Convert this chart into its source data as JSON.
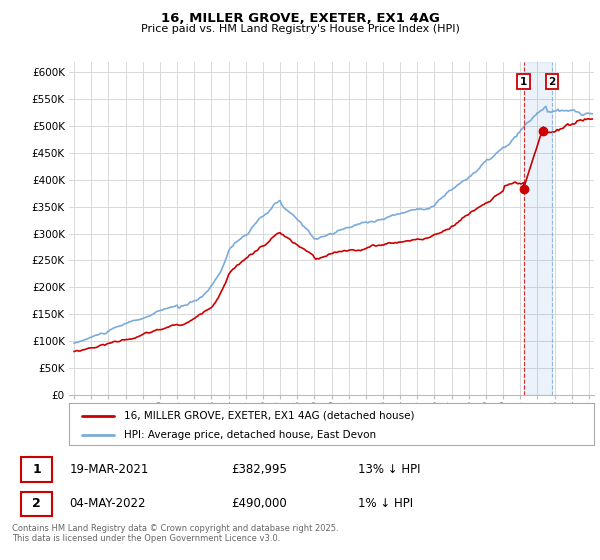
{
  "title": "16, MILLER GROVE, EXETER, EX1 4AG",
  "subtitle": "Price paid vs. HM Land Registry's House Price Index (HPI)",
  "legend_line1": "16, MILLER GROVE, EXETER, EX1 4AG (detached house)",
  "legend_line2": "HPI: Average price, detached house, East Devon",
  "transaction1_date": "19-MAR-2021",
  "transaction1_price": "£382,995",
  "transaction1_hpi": "13% ↓ HPI",
  "transaction2_date": "04-MAY-2022",
  "transaction2_price": "£490,000",
  "transaction2_hpi": "1% ↓ HPI",
  "footnote": "Contains HM Land Registry data © Crown copyright and database right 2025.\nThis data is licensed under the Open Government Licence v3.0.",
  "hpi_color": "#7aabdb",
  "price_color": "#cc0000",
  "background_color": "#ffffff",
  "grid_color": "#d8d8d8",
  "ylim": [
    0,
    620000
  ],
  "yticks": [
    0,
    50000,
    100000,
    150000,
    200000,
    250000,
    300000,
    350000,
    400000,
    450000,
    500000,
    550000,
    600000
  ],
  "xlim_start": 1994.7,
  "xlim_end": 2025.3,
  "transaction1_year": 2021.2,
  "transaction2_year": 2022.35,
  "transaction1_value": 382995,
  "transaction2_value": 490000,
  "shade_color": "#ddeeff"
}
